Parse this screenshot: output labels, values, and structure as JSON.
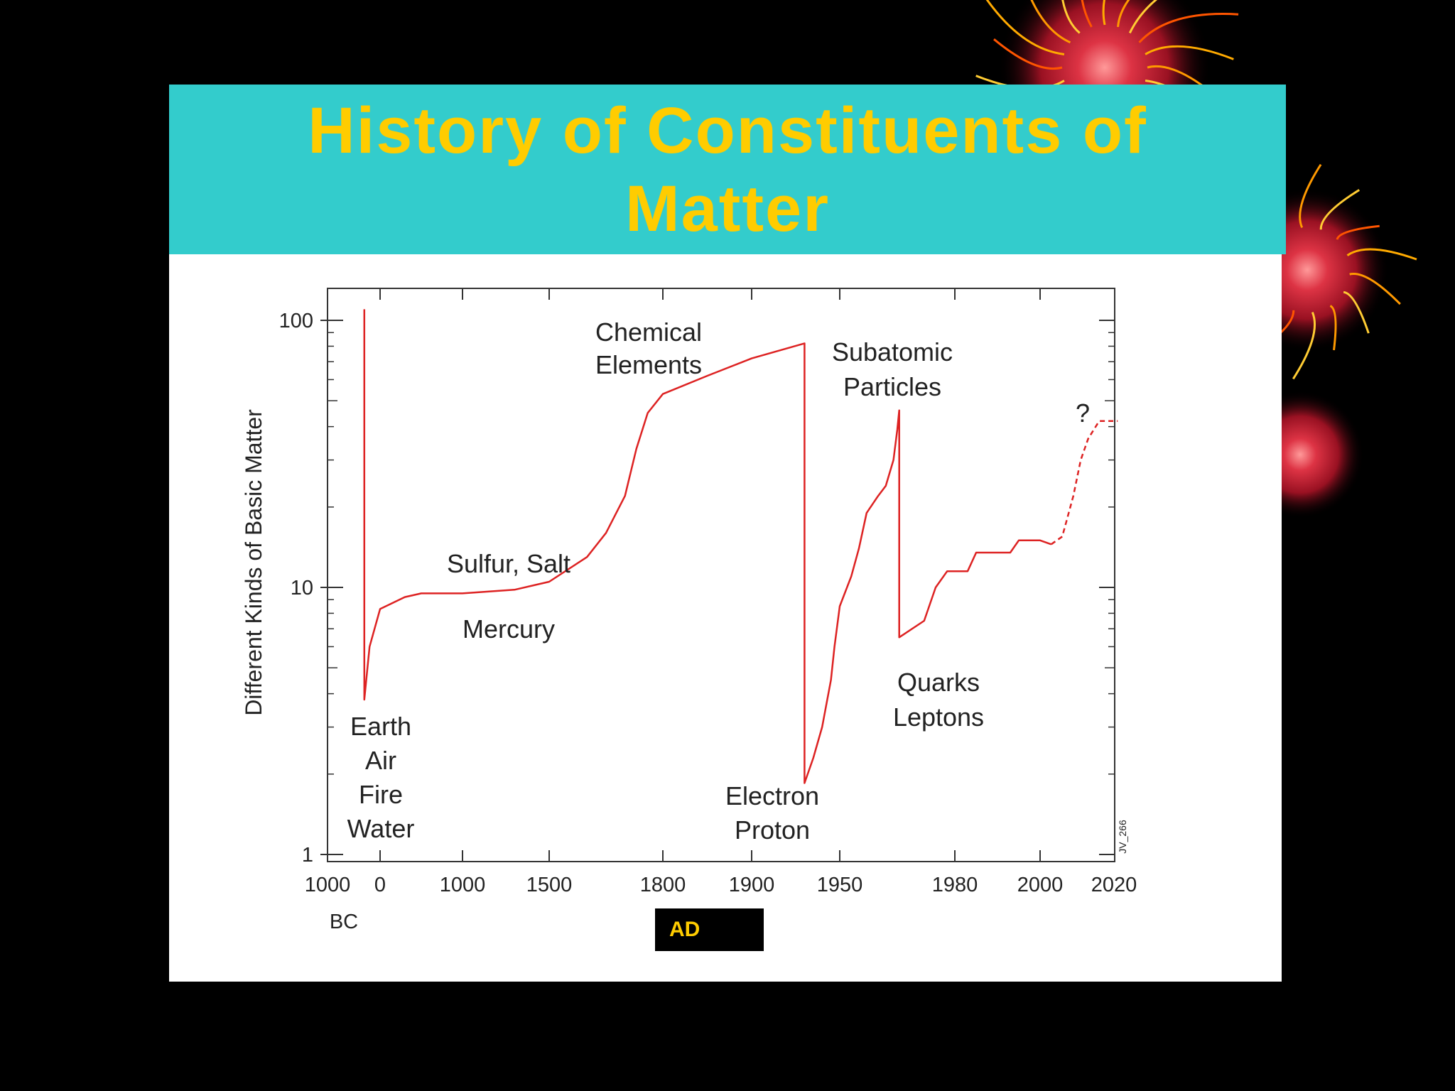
{
  "slide": {
    "title": "History of Constituents of Matter",
    "colors": {
      "background": "#000000",
      "title_bar": "#33cccc",
      "title_text": "#ffcc00",
      "content_bg": "#ffffff",
      "curve": "#dd2222"
    },
    "decoration": "fireworks"
  },
  "chart_data": {
    "type": "line",
    "title": "",
    "xlabel": "",
    "ylabel": "Different Kinds of Basic Matter",
    "y_scale": "log",
    "ylim": [
      1,
      100
    ],
    "y_ticks": [
      "1",
      "10",
      "100"
    ],
    "x_scale": "piecewise",
    "x_tick_labels": [
      "1000",
      "0",
      "1000",
      "1500",
      "1800",
      "1900",
      "1950",
      "1980",
      "2000",
      "2020"
    ],
    "x_era_labels": {
      "bc": "BC",
      "ad": "AD"
    },
    "watermark": "JV_266",
    "series": [
      {
        "values": [
          [
            -300,
            110
          ],
          [
            -300,
            3.8
          ],
          [
            -200,
            6
          ],
          [
            0,
            8.3
          ],
          [
            300,
            9.2
          ],
          [
            500,
            9.5
          ],
          [
            1000,
            9.5
          ],
          [
            1300,
            9.8
          ],
          [
            1500,
            10.5
          ],
          [
            1600,
            13
          ],
          [
            1650,
            16
          ],
          [
            1700,
            22
          ],
          [
            1730,
            33
          ],
          [
            1760,
            45
          ],
          [
            1800,
            53
          ],
          [
            1850,
            62
          ],
          [
            1900,
            72
          ],
          [
            1930,
            82
          ],
          [
            1930,
            1.85
          ],
          [
            1935,
            2.3
          ],
          [
            1940,
            3
          ],
          [
            1945,
            4.5
          ],
          [
            1947,
            6
          ],
          [
            1950,
            8.5
          ],
          [
            1953,
            11
          ],
          [
            1955,
            14
          ],
          [
            1957,
            19
          ],
          [
            1960,
            22
          ],
          [
            1962,
            24
          ],
          [
            1964,
            30
          ],
          [
            1965,
            39
          ],
          [
            1965.5,
            46
          ],
          [
            1965.5,
            6.5
          ],
          [
            1972,
            7.5
          ],
          [
            1975,
            10
          ],
          [
            1978,
            11.5
          ],
          [
            1983,
            11.5
          ],
          [
            1985,
            13.5
          ],
          [
            1993,
            13.5
          ],
          [
            1995,
            15
          ],
          [
            2000,
            15
          ],
          [
            2003,
            14.5
          ]
        ]
      },
      {
        "style": "dashed",
        "values": [
          [
            2003,
            14.5
          ],
          [
            2006,
            15.5
          ],
          [
            2009,
            22
          ],
          [
            2011,
            30
          ],
          [
            2013,
            36
          ],
          [
            2016,
            42
          ],
          [
            2021,
            42
          ]
        ]
      }
    ],
    "annotations": [
      {
        "lines": [
          "Earth",
          "Air",
          "Fire",
          "Water"
        ]
      },
      {
        "lines": [
          "Sulfur, Salt"
        ]
      },
      {
        "lines": [
          "Mercury"
        ]
      },
      {
        "lines": [
          "Chemical",
          "Elements"
        ]
      },
      {
        "lines": [
          "Electron",
          "Proton"
        ]
      },
      {
        "lines": [
          "Subatomic",
          "Particles"
        ]
      },
      {
        "lines": [
          "Quarks",
          "Leptons"
        ]
      },
      {
        "lines": [
          "?"
        ]
      }
    ]
  }
}
